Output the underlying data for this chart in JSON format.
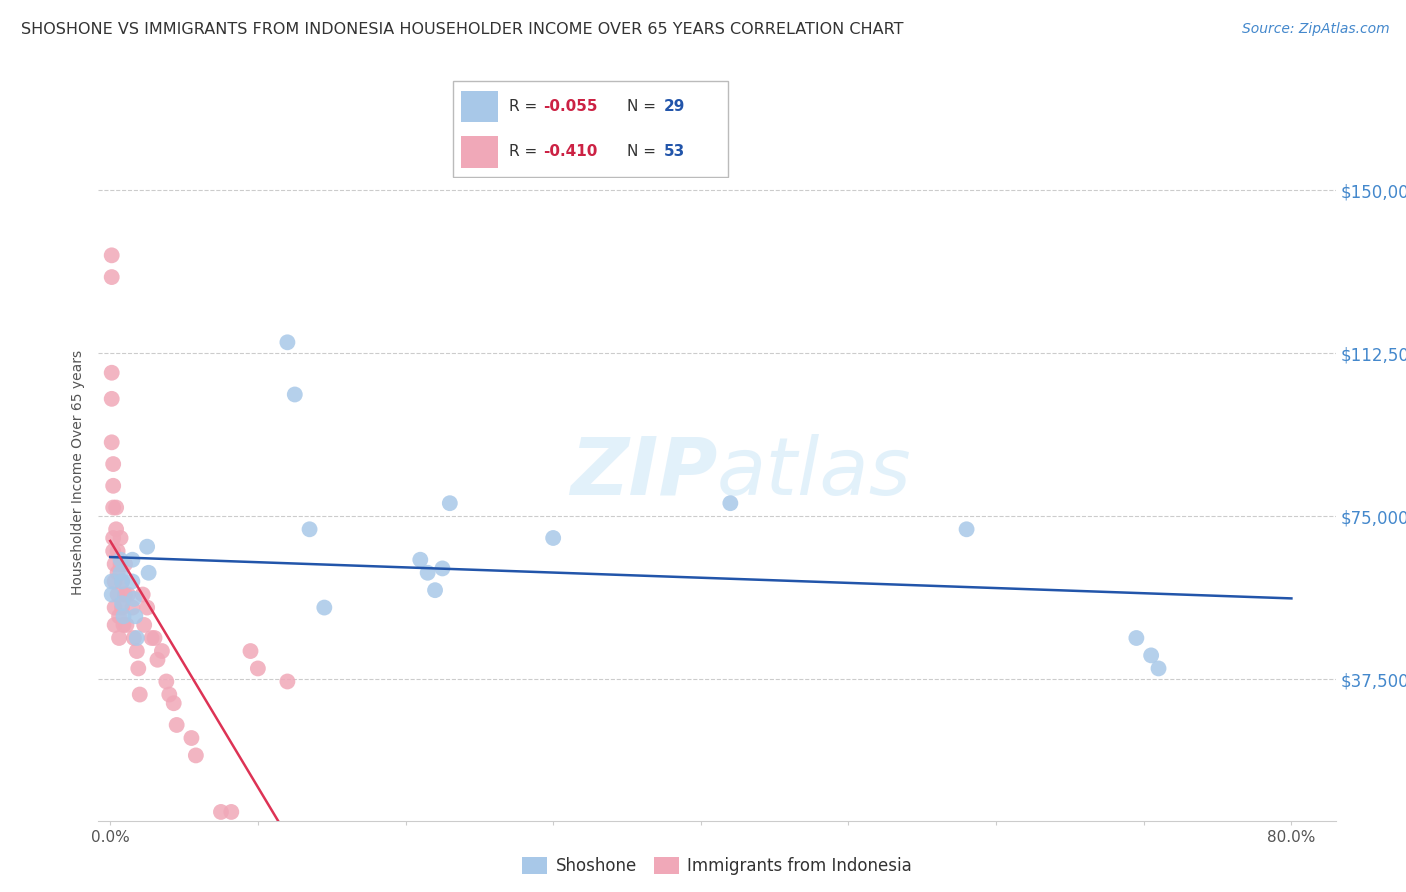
{
  "title": "SHOSHONE VS IMMIGRANTS FROM INDONESIA HOUSEHOLDER INCOME OVER 65 YEARS CORRELATION CHART",
  "source": "Source: ZipAtlas.com",
  "ylabel": "Householder Income Over 65 years",
  "xlabel_ticks": [
    "0.0%",
    "",
    "",
    "",
    "",
    "",
    "",
    "",
    "80.0%"
  ],
  "xlabel_vals": [
    0.0,
    0.1,
    0.2,
    0.3,
    0.4,
    0.5,
    0.6,
    0.7,
    0.8
  ],
  "ytick_labels": [
    "$37,500",
    "$75,000",
    "$112,500",
    "$150,000"
  ],
  "ytick_vals": [
    37500,
    75000,
    112500,
    150000
  ],
  "xlim": [
    -0.008,
    0.83
  ],
  "ylim": [
    5000,
    165000
  ],
  "blue_R": "-0.055",
  "blue_N": "29",
  "pink_R": "-0.410",
  "pink_N": "53",
  "blue_color": "#a8c8e8",
  "pink_color": "#f0a8b8",
  "blue_line_color": "#2255aa",
  "pink_line_color": "#dd3355",
  "shoshone_x": [
    0.001,
    0.001,
    0.007,
    0.007,
    0.008,
    0.008,
    0.009,
    0.015,
    0.015,
    0.016,
    0.017,
    0.018,
    0.025,
    0.026,
    0.12,
    0.125,
    0.135,
    0.145,
    0.21,
    0.215,
    0.22,
    0.225,
    0.23,
    0.3,
    0.42,
    0.58,
    0.695,
    0.705,
    0.71
  ],
  "shoshone_y": [
    60000,
    57000,
    65000,
    62000,
    60000,
    55000,
    52000,
    65000,
    60000,
    56000,
    52000,
    47000,
    68000,
    62000,
    115000,
    103000,
    72000,
    54000,
    65000,
    62000,
    58000,
    63000,
    78000,
    70000,
    78000,
    72000,
    47000,
    43000,
    40000
  ],
  "indonesia_x": [
    0.001,
    0.001,
    0.001,
    0.001,
    0.001,
    0.002,
    0.002,
    0.002,
    0.002,
    0.002,
    0.003,
    0.003,
    0.003,
    0.003,
    0.004,
    0.004,
    0.005,
    0.005,
    0.005,
    0.006,
    0.006,
    0.007,
    0.007,
    0.008,
    0.008,
    0.009,
    0.01,
    0.01,
    0.011,
    0.012,
    0.015,
    0.016,
    0.018,
    0.019,
    0.02,
    0.022,
    0.023,
    0.025,
    0.028,
    0.03,
    0.032,
    0.035,
    0.038,
    0.04,
    0.043,
    0.045,
    0.055,
    0.058,
    0.075,
    0.082,
    0.095,
    0.1,
    0.12
  ],
  "indonesia_y": [
    135000,
    130000,
    108000,
    102000,
    92000,
    87000,
    82000,
    77000,
    70000,
    67000,
    64000,
    60000,
    54000,
    50000,
    77000,
    72000,
    67000,
    62000,
    57000,
    52000,
    47000,
    70000,
    64000,
    60000,
    54000,
    50000,
    64000,
    57000,
    50000,
    57000,
    54000,
    47000,
    44000,
    40000,
    34000,
    57000,
    50000,
    54000,
    47000,
    47000,
    42000,
    44000,
    37000,
    34000,
    32000,
    27000,
    24000,
    20000,
    7000,
    7000,
    44000,
    40000,
    37000
  ]
}
